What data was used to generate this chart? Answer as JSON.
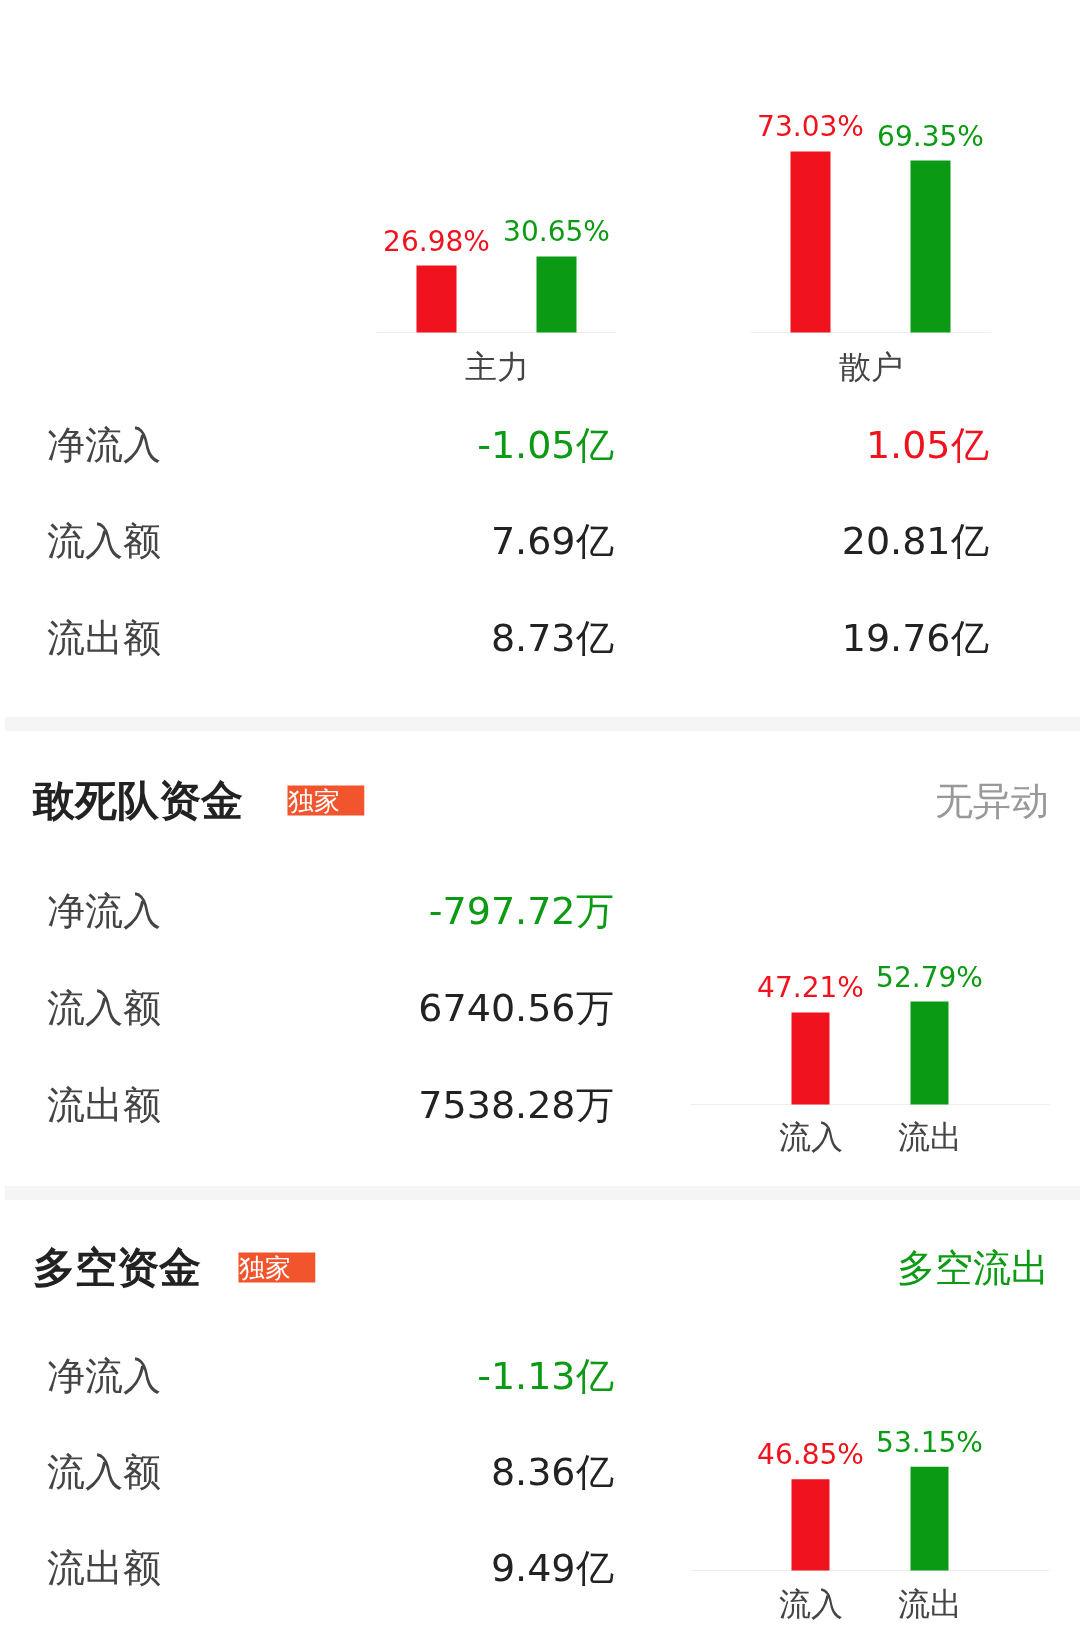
{
  "chart_data": [
    {
      "type": "bar",
      "categories": [
        "主力",
        "散户"
      ],
      "series": [
        {
          "color": "#f0131e",
          "values": [
            26.98,
            73.03
          ],
          "value_labels": [
            "26.98%",
            "73.03%"
          ]
        },
        {
          "color": "#0b9a13",
          "values": [
            30.65,
            69.35
          ],
          "value_labels": [
            "30.65%",
            "69.35%"
          ]
        }
      ],
      "annotations": [
        "净流入",
        "-1.05亿",
        "1.05亿",
        "流入额",
        "7.69亿",
        "20.81亿",
        "流出额",
        "8.73亿",
        "19.76亿"
      ]
    },
    {
      "type": "bar",
      "categories": [
        "流入",
        "流出"
      ],
      "values": [
        47.21,
        52.79
      ],
      "colors": [
        "#f0131e",
        "#0b9a13"
      ],
      "value_labels": [
        "47.21%",
        "52.79%"
      ],
      "annotations": [
        "敢死队资金",
        "独家",
        "无异动",
        "净流入",
        "-797.72万",
        "流入额",
        "6740.56万",
        "流出额",
        "7538.28万"
      ]
    },
    {
      "type": "bar",
      "categories": [
        "流入",
        "流出"
      ],
      "values": [
        46.85,
        53.15
      ],
      "colors": [
        "#f0131e",
        "#0b9a13"
      ],
      "value_labels": [
        "46.85%",
        "53.15%"
      ],
      "annotations": [
        "多空资金",
        "独家",
        "多空流出",
        "净流入",
        "-1.13亿",
        "流入额",
        "8.36亿",
        "流出额",
        "9.49亿"
      ]
    }
  ]
}
